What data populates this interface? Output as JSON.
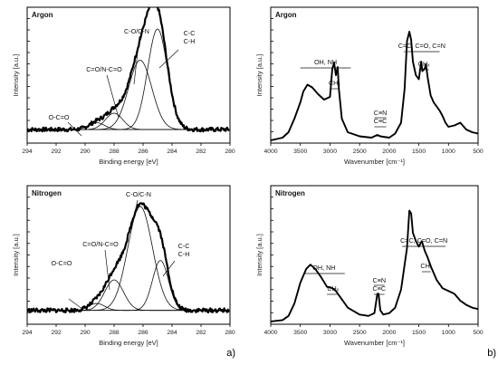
{
  "figure_labels": {
    "a": "a)",
    "b": "b)"
  },
  "chart_data": [
    {
      "id": "xps-argon",
      "type": "line",
      "title": "Argon",
      "xlabel": "Binding energy [eV]",
      "ylabel": "Intensity [a.u.]",
      "xlim": [
        294,
        280
      ],
      "x_ticks": [
        294,
        292,
        290,
        288,
        286,
        284,
        282,
        280
      ],
      "ylim": [
        0,
        1
      ],
      "baseline": 0.1,
      "noise": 0.015,
      "series": [
        {
          "values": [
            {
              "center": 289.2,
              "height": 0.05,
              "width": 0.55
            }
          ]
        },
        {
          "values": [
            {
              "center": 288.0,
              "height": 0.12,
              "width": 0.6
            }
          ]
        },
        {
          "values": [
            {
              "center": 286.2,
              "height": 0.51,
              "width": 0.8
            }
          ]
        },
        {
          "values": [
            {
              "center": 285.0,
              "height": 0.74,
              "width": 0.68
            }
          ]
        }
      ],
      "annotations": [
        {
          "label": "O-C=O",
          "points_to_x": 289.2
        },
        {
          "label": "C=O/N-C=O",
          "points_to_x": 288.0
        },
        {
          "label": "C-O/C-N",
          "points_to_x": 286.2
        },
        {
          "label": "C-C\nC-H",
          "points_to_x": 284.7
        }
      ]
    },
    {
      "id": "ir-argon",
      "type": "line",
      "title": "Argon",
      "xlabel": "Wavenumber [cm⁻¹]",
      "ylabel": "Intensity [a.u.]",
      "xlim": [
        4000,
        500
      ],
      "x_ticks": [
        4000,
        3500,
        3000,
        2500,
        2000,
        1500,
        1000,
        500
      ],
      "ylim": [
        0,
        1
      ],
      "series": [
        {
          "values": [
            [
              4000,
              0.02
            ],
            [
              3800,
              0.04
            ],
            [
              3700,
              0.08
            ],
            [
              3600,
              0.18
            ],
            [
              3500,
              0.3
            ],
            [
              3450,
              0.38
            ],
            [
              3380,
              0.43
            ],
            [
              3300,
              0.41
            ],
            [
              3200,
              0.36
            ],
            [
              3100,
              0.32
            ],
            [
              3000,
              0.34
            ],
            [
              2960,
              0.55
            ],
            [
              2930,
              0.59
            ],
            [
              2900,
              0.5
            ],
            [
              2870,
              0.56
            ],
            [
              2850,
              0.4
            ],
            [
              2800,
              0.18
            ],
            [
              2700,
              0.08
            ],
            [
              2500,
              0.05
            ],
            [
              2300,
              0.04
            ],
            [
              2200,
              0.06
            ],
            [
              2150,
              0.05
            ],
            [
              2000,
              0.04
            ],
            [
              1900,
              0.07
            ],
            [
              1800,
              0.15
            ],
            [
              1740,
              0.4
            ],
            [
              1700,
              0.75
            ],
            [
              1660,
              0.82
            ],
            [
              1630,
              0.76
            ],
            [
              1600,
              0.6
            ],
            [
              1550,
              0.5
            ],
            [
              1500,
              0.47
            ],
            [
              1460,
              0.6
            ],
            [
              1440,
              0.53
            ],
            [
              1400,
              0.55
            ],
            [
              1380,
              0.58
            ],
            [
              1350,
              0.48
            ],
            [
              1300,
              0.35
            ],
            [
              1250,
              0.3
            ],
            [
              1200,
              0.27
            ],
            [
              1150,
              0.24
            ],
            [
              1100,
              0.2
            ],
            [
              1050,
              0.15
            ],
            [
              1000,
              0.12
            ],
            [
              900,
              0.13
            ],
            [
              800,
              0.15
            ],
            [
              700,
              0.1
            ],
            [
              600,
              0.08
            ],
            [
              500,
              0.07
            ]
          ]
        }
      ],
      "annotations": [
        {
          "label": "OH, NH",
          "range": [
            3500,
            2650
          ]
        },
        {
          "label": "CHₓ",
          "range": [
            3000,
            2850
          ]
        },
        {
          "label": "C≡N\nC≡C",
          "range": [
            2250,
            2050
          ]
        },
        {
          "label": "C=C, C=O, C=N",
          "range": [
            1750,
            1150
          ]
        },
        {
          "label": "CHₓ",
          "range": [
            1500,
            1330
          ]
        }
      ]
    },
    {
      "id": "xps-nitrogen",
      "type": "line",
      "title": "Nitrogen",
      "xlabel": "Binding energy [eV]",
      "ylabel": "Intensity [a.u.]",
      "xlim": [
        294,
        280
      ],
      "x_ticks": [
        294,
        292,
        290,
        288,
        286,
        284,
        282,
        280
      ],
      "ylim": [
        0,
        1
      ],
      "baseline": 0.1,
      "noise": 0.015,
      "series": [
        {
          "values": [
            {
              "center": 289.2,
              "height": 0.05,
              "width": 0.55
            }
          ]
        },
        {
          "values": [
            {
              "center": 288.0,
              "height": 0.22,
              "width": 0.65
            }
          ]
        },
        {
          "values": [
            {
              "center": 286.2,
              "height": 0.75,
              "width": 0.85
            }
          ]
        },
        {
          "values": [
            {
              "center": 284.8,
              "height": 0.36,
              "width": 0.55
            }
          ]
        }
      ],
      "annotations": [
        {
          "label": "O-C=O",
          "points_to_x": 289.2
        },
        {
          "label": "C=O/N-C=O",
          "points_to_x": 288.0
        },
        {
          "label": "C-O/C-N",
          "points_to_x": 286.2
        },
        {
          "label": "C-C\nC-H",
          "points_to_x": 284.8
        }
      ]
    },
    {
      "id": "ir-nitrogen",
      "type": "line",
      "title": "Nitrogen",
      "xlabel": "Wavenumber [cm⁻¹]",
      "ylabel": "Intensity [a.u.]",
      "xlim": [
        4000,
        500
      ],
      "x_ticks": [
        4000,
        3500,
        3000,
        2500,
        2000,
        1500,
        1000,
        500
      ],
      "ylim": [
        0,
        1
      ],
      "series": [
        {
          "values": [
            [
              4000,
              0.02
            ],
            [
              3800,
              0.03
            ],
            [
              3700,
              0.06
            ],
            [
              3600,
              0.15
            ],
            [
              3500,
              0.3
            ],
            [
              3400,
              0.4
            ],
            [
              3330,
              0.43
            ],
            [
              3250,
              0.4
            ],
            [
              3150,
              0.34
            ],
            [
              3050,
              0.27
            ],
            [
              2960,
              0.26
            ],
            [
              2900,
              0.24
            ],
            [
              2800,
              0.18
            ],
            [
              2700,
              0.12
            ],
            [
              2500,
              0.07
            ],
            [
              2350,
              0.06
            ],
            [
              2250,
              0.08
            ],
            [
              2200,
              0.22
            ],
            [
              2180,
              0.22
            ],
            [
              2150,
              0.1
            ],
            [
              2100,
              0.07
            ],
            [
              2000,
              0.08
            ],
            [
              1900,
              0.12
            ],
            [
              1800,
              0.25
            ],
            [
              1700,
              0.55
            ],
            [
              1660,
              0.82
            ],
            [
              1630,
              0.8
            ],
            [
              1600,
              0.66
            ],
            [
              1550,
              0.6
            ],
            [
              1500,
              0.56
            ],
            [
              1450,
              0.6
            ],
            [
              1400,
              0.53
            ],
            [
              1350,
              0.48
            ],
            [
              1300,
              0.42
            ],
            [
              1250,
              0.37
            ],
            [
              1200,
              0.32
            ],
            [
              1100,
              0.26
            ],
            [
              1000,
              0.24
            ],
            [
              900,
              0.22
            ],
            [
              800,
              0.17
            ],
            [
              700,
              0.14
            ],
            [
              600,
              0.12
            ],
            [
              500,
              0.11
            ]
          ]
        }
      ],
      "annotations": [
        {
          "label": "OH, NH",
          "range": [
            3450,
            2750
          ]
        },
        {
          "label": "CHₓ",
          "range": [
            3050,
            2850
          ]
        },
        {
          "label": "C≡N\nC≡C",
          "range": [
            2260,
            2080
          ]
        },
        {
          "label": "C=C, C=O, C=N",
          "range": [
            1780,
            1050
          ]
        },
        {
          "label": "CHₓ",
          "range": [
            1450,
            1300
          ]
        }
      ]
    }
  ]
}
